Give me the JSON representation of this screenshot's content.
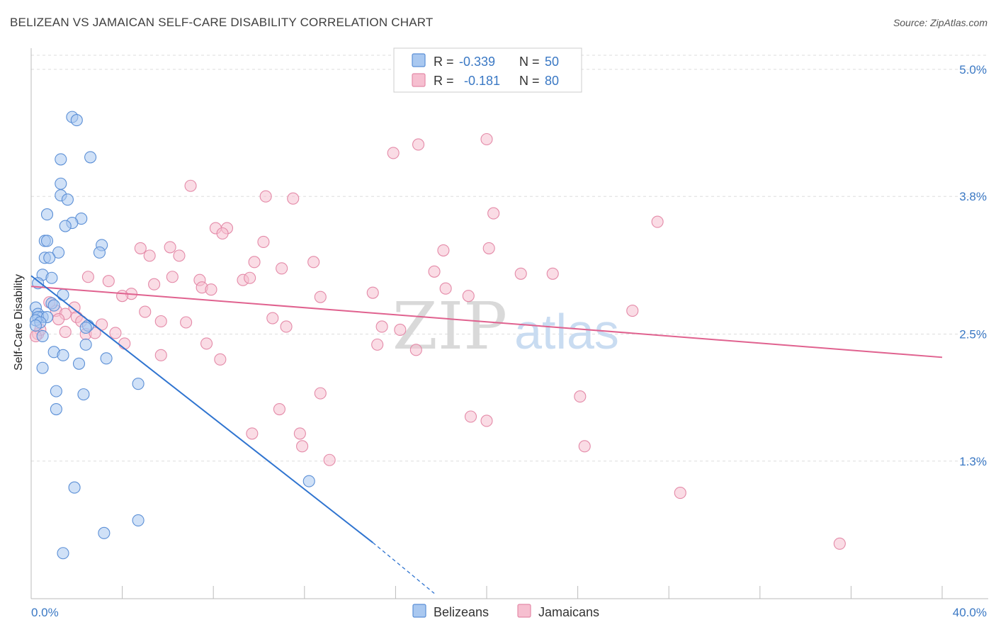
{
  "title": "BELIZEAN VS JAMAICAN SELF-CARE DISABILITY CORRELATION CHART",
  "source": "Source: ZipAtlas.com",
  "watermark": {
    "zip": "ZIP",
    "atlas": "atlas"
  },
  "colors": {
    "belizean_fill": "#a9c8f0",
    "belizean_stroke": "#5b8fd6",
    "belizean_line": "#2f74d0",
    "jamaican_fill": "#f6bfd0",
    "jamaican_stroke": "#e48aa8",
    "jamaican_line": "#e0628f",
    "tick_text": "#3a78c4",
    "grid": "#dddddd"
  },
  "stats": [
    {
      "r_label": "R =",
      "r_value": "-0.339",
      "n_label": "N =",
      "n_value": "50"
    },
    {
      "r_label": "R =",
      "r_value": "-0.181",
      "n_label": "N =",
      "n_value": "80"
    }
  ],
  "chart_data": {
    "type": "scatter",
    "title": "BELIZEAN VS JAMAICAN SELF-CARE DISABILITY CORRELATION CHART",
    "xlabel": "",
    "ylabel": "Self-Care Disability",
    "xlim": [
      0,
      40
    ],
    "ylim": [
      0,
      5.2
    ],
    "x_tick_labels": [
      "0.0%",
      "40.0%"
    ],
    "y_ticks": [
      1.3,
      2.5,
      3.8,
      5.0
    ],
    "y_tick_labels": [
      "1.3%",
      "2.5%",
      "3.8%",
      "5.0%"
    ],
    "grid": true,
    "legend_position": "bottom-center",
    "series": [
      {
        "name": "Belizeans",
        "points": [
          [
            1.8,
            4.55
          ],
          [
            2.0,
            4.52
          ],
          [
            1.3,
            4.15
          ],
          [
            2.6,
            4.17
          ],
          [
            1.3,
            3.92
          ],
          [
            1.3,
            3.81
          ],
          [
            1.6,
            3.77
          ],
          [
            0.7,
            3.63
          ],
          [
            2.2,
            3.59
          ],
          [
            1.8,
            3.55
          ],
          [
            1.5,
            3.52
          ],
          [
            0.6,
            3.38
          ],
          [
            0.7,
            3.38
          ],
          [
            3.1,
            3.34
          ],
          [
            1.2,
            3.27
          ],
          [
            3.0,
            3.27
          ],
          [
            0.6,
            3.22
          ],
          [
            0.8,
            3.22
          ],
          [
            0.5,
            3.06
          ],
          [
            0.9,
            3.03
          ],
          [
            0.3,
            2.98
          ],
          [
            1.4,
            2.87
          ],
          [
            0.9,
            2.79
          ],
          [
            1.0,
            2.77
          ],
          [
            0.2,
            2.75
          ],
          [
            0.3,
            2.69
          ],
          [
            0.5,
            2.66
          ],
          [
            0.3,
            2.66
          ],
          [
            0.7,
            2.66
          ],
          [
            0.2,
            2.63
          ],
          [
            0.4,
            2.61
          ],
          [
            0.2,
            2.58
          ],
          [
            2.5,
            2.58
          ],
          [
            2.4,
            2.56
          ],
          [
            0.5,
            2.48
          ],
          [
            2.4,
            2.4
          ],
          [
            1.0,
            2.33
          ],
          [
            1.4,
            2.3
          ],
          [
            3.3,
            2.27
          ],
          [
            2.1,
            2.22
          ],
          [
            0.5,
            2.18
          ],
          [
            4.7,
            2.03
          ],
          [
            1.1,
            1.96
          ],
          [
            2.3,
            1.93
          ],
          [
            1.1,
            1.79
          ],
          [
            12.2,
            1.11
          ],
          [
            1.9,
            1.05
          ],
          [
            4.7,
            0.74
          ],
          [
            3.2,
            0.62
          ],
          [
            1.4,
            0.43
          ]
        ]
      },
      {
        "name": "Jamaicans",
        "points": [
          [
            0.3,
            2.5
          ],
          [
            20.0,
            4.34
          ],
          [
            15.9,
            4.21
          ],
          [
            17.0,
            4.29
          ],
          [
            7.0,
            3.9
          ],
          [
            10.3,
            3.8
          ],
          [
            11.5,
            3.78
          ],
          [
            20.3,
            3.64
          ],
          [
            27.5,
            3.56
          ],
          [
            8.1,
            3.5
          ],
          [
            8.6,
            3.5
          ],
          [
            8.4,
            3.45
          ],
          [
            10.2,
            3.37
          ],
          [
            4.8,
            3.31
          ],
          [
            6.1,
            3.32
          ],
          [
            18.1,
            3.29
          ],
          [
            20.1,
            3.31
          ],
          [
            5.2,
            3.24
          ],
          [
            6.5,
            3.24
          ],
          [
            9.8,
            3.18
          ],
          [
            12.4,
            3.18
          ],
          [
            11.0,
            3.12
          ],
          [
            17.7,
            3.09
          ],
          [
            21.5,
            3.07
          ],
          [
            22.9,
            3.07
          ],
          [
            2.5,
            3.04
          ],
          [
            6.2,
            3.04
          ],
          [
            7.4,
            3.01
          ],
          [
            9.3,
            3.01
          ],
          [
            9.6,
            3.03
          ],
          [
            3.4,
            3.0
          ],
          [
            5.4,
            2.97
          ],
          [
            7.5,
            2.94
          ],
          [
            7.9,
            2.92
          ],
          [
            18.2,
            2.93
          ],
          [
            15.0,
            2.89
          ],
          [
            4.4,
            2.88
          ],
          [
            4.0,
            2.86
          ],
          [
            12.7,
            2.85
          ],
          [
            19.2,
            2.86
          ],
          [
            0.8,
            2.8
          ],
          [
            1.9,
            2.75
          ],
          [
            5.0,
            2.71
          ],
          [
            1.1,
            2.72
          ],
          [
            26.4,
            2.72
          ],
          [
            1.5,
            2.69
          ],
          [
            2.0,
            2.66
          ],
          [
            10.6,
            2.65
          ],
          [
            1.2,
            2.64
          ],
          [
            2.2,
            2.62
          ],
          [
            5.7,
            2.62
          ],
          [
            6.8,
            2.61
          ],
          [
            3.1,
            2.59
          ],
          [
            11.2,
            2.57
          ],
          [
            15.4,
            2.57
          ],
          [
            16.2,
            2.54
          ],
          [
            1.5,
            2.52
          ],
          [
            2.4,
            2.5
          ],
          [
            2.8,
            2.51
          ],
          [
            3.7,
            2.51
          ],
          [
            4.1,
            2.41
          ],
          [
            7.7,
            2.41
          ],
          [
            15.2,
            2.4
          ],
          [
            16.9,
            2.35
          ],
          [
            5.7,
            2.3
          ],
          [
            8.3,
            2.26
          ],
          [
            12.7,
            1.94
          ],
          [
            24.1,
            1.91
          ],
          [
            10.9,
            1.79
          ],
          [
            19.3,
            1.72
          ],
          [
            20.0,
            1.68
          ],
          [
            9.7,
            1.56
          ],
          [
            11.8,
            1.56
          ],
          [
            11.9,
            1.44
          ],
          [
            24.3,
            1.44
          ],
          [
            13.1,
            1.31
          ],
          [
            28.5,
            1.0
          ],
          [
            35.5,
            0.52
          ],
          [
            0.4,
            2.54
          ],
          [
            0.2,
            2.48
          ]
        ]
      }
    ],
    "trend_lines": [
      {
        "series": "Belizeans",
        "x_start": 0,
        "y_start": 3.05,
        "x_end": 15.0,
        "y_end": 0.53,
        "dashed_to_x": 17.7,
        "dashed_to_y": 0.05
      },
      {
        "series": "Jamaicans",
        "x_start": 0,
        "y_start": 2.95,
        "x_end": 40,
        "y_end": 2.28
      }
    ]
  }
}
